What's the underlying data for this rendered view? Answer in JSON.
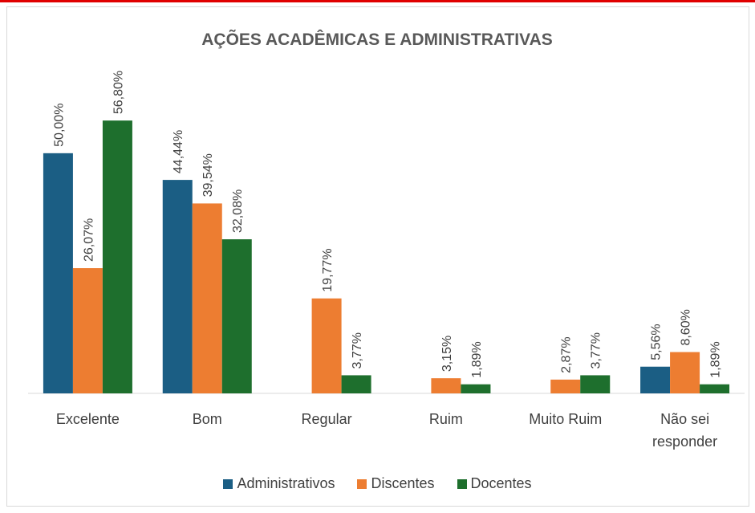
{
  "chart_data": {
    "type": "bar",
    "title": "AÇÕES ACADÊMICAS E ADMINISTRATIVAS",
    "categories": [
      "Excelente",
      "Bom",
      "Regular",
      "Ruim",
      "Muito Ruim",
      "Não sei responder"
    ],
    "series": [
      {
        "name": "Administrativos",
        "color": "#1b5e84",
        "values": [
          50.0,
          44.44,
          null,
          null,
          null,
          5.56
        ],
        "value_labels": [
          "50,00%",
          "44,44%",
          null,
          null,
          null,
          "5,56%"
        ]
      },
      {
        "name": "Discentes",
        "color": "#ed7d31",
        "values": [
          26.07,
          39.54,
          19.77,
          3.15,
          2.87,
          8.6
        ],
        "value_labels": [
          "26,07%",
          "39,54%",
          "19,77%",
          "3,15%",
          "2,87%",
          "8,60%"
        ]
      },
      {
        "name": "Docentes",
        "color": "#1e6f2d",
        "values": [
          56.8,
          32.08,
          3.77,
          1.89,
          3.77,
          1.89
        ],
        "value_labels": [
          "56,80%",
          "32,08%",
          "3,77%",
          "1,89%",
          "3,77%",
          "1,89%"
        ]
      }
    ],
    "ylim": [
      0,
      60
    ],
    "legend": "bottom"
  }
}
